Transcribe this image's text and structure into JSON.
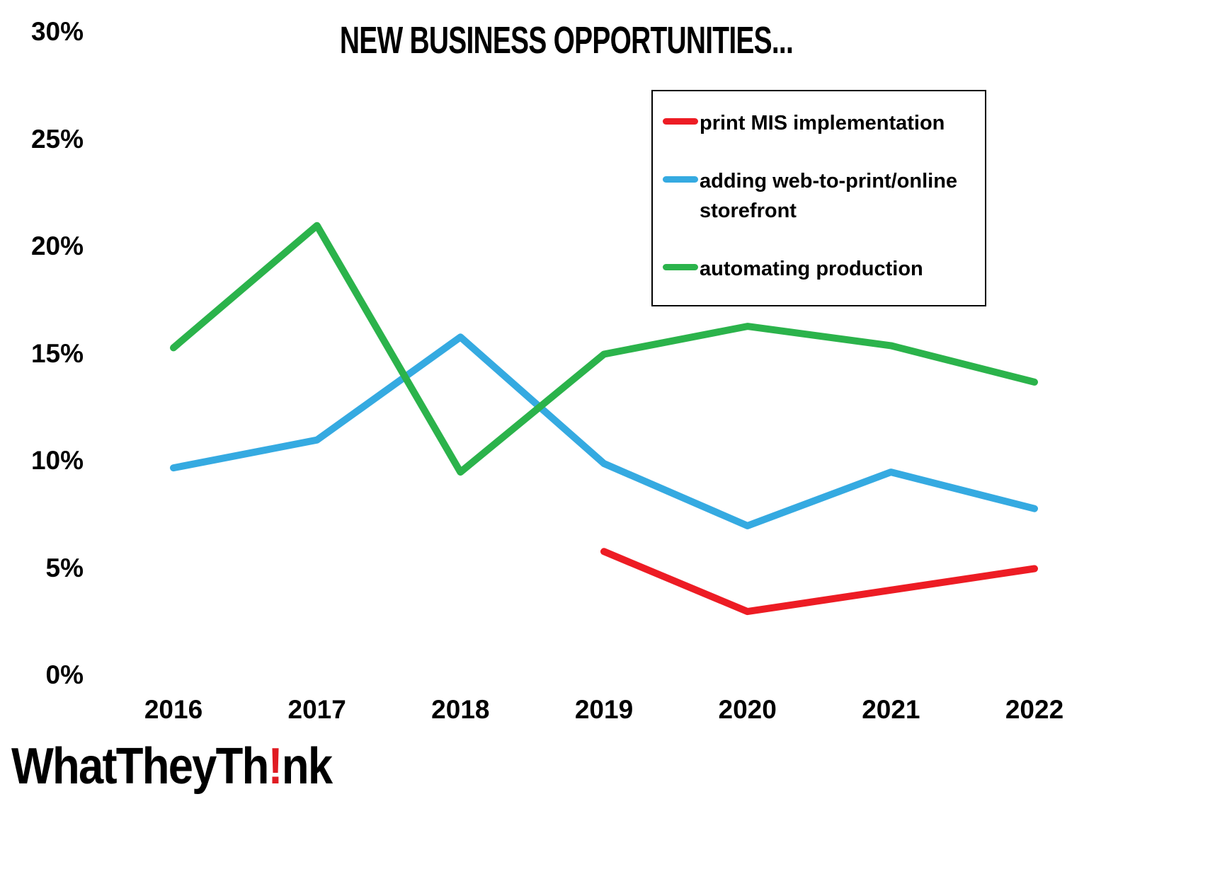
{
  "title": "NEW BUSINESS OPPORTUNITIES...",
  "logo": {
    "prefix": "WhatTheyTh",
    "exclaim": "!",
    "suffix": "nk"
  },
  "chart_data": {
    "type": "line",
    "title": "NEW BUSINESS OPPORTUNITIES...",
    "categories": [
      "2016",
      "2017",
      "2018",
      "2019",
      "2020",
      "2021",
      "2022"
    ],
    "series": [
      {
        "name": "print MIS implementation",
        "color": "#ed1c24",
        "values": [
          null,
          null,
          null,
          5.8,
          3,
          4,
          5
        ]
      },
      {
        "name": "adding web-to-print/online storefront",
        "color": "#35aae1",
        "values": [
          9.7,
          11,
          15.8,
          9.9,
          7,
          9.5,
          7.8
        ]
      },
      {
        "name": "automating production",
        "color": "#2bb34b",
        "values": [
          15.3,
          21,
          9.5,
          15,
          16.3,
          15.4,
          13.7
        ]
      }
    ],
    "xlabel": "",
    "ylabel": "",
    "ylim": [
      0,
      30
    ],
    "ytick_step": 5,
    "ytick_labels": [
      "0%",
      "5%",
      "10%",
      "15%",
      "20%",
      "25%",
      "30%"
    ],
    "grid": false,
    "legend_position": "top-right"
  }
}
